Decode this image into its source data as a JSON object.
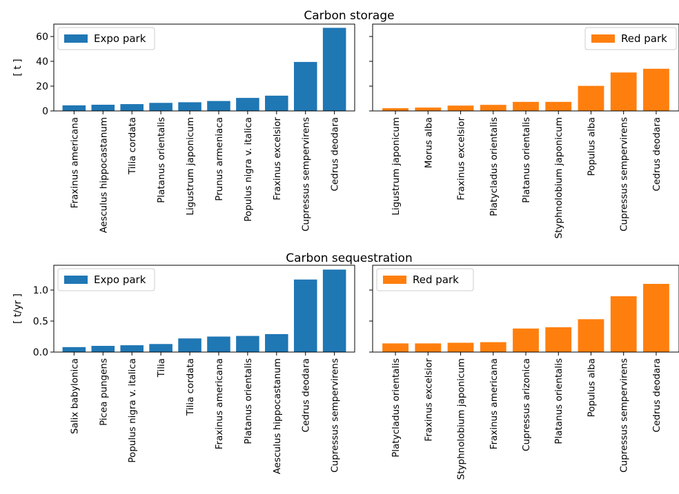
{
  "figure": {
    "title_top": "Carbon storage",
    "title_bottom": "Carbon sequestration"
  },
  "chart_data": [
    {
      "type": "bar",
      "panel": "storage-expo",
      "legend": "Expo park",
      "legend_placement": "top-left",
      "color": "#1f77b4",
      "ylabel": "[ t ]",
      "ylim": [
        0,
        70
      ],
      "yticks": [
        0,
        20,
        40,
        60
      ],
      "categories": [
        "Fraxinus americana",
        "Aesculus hippocastanum",
        "Tilia cordata",
        "Platanus orientalis",
        "Ligustrum japonicum",
        "Prunus armeniaca",
        "Populus nigra v. italica",
        "Fraxinus excelsior",
        "Cupressus sempervirens",
        "Cedrus deodara"
      ],
      "values": [
        4.5,
        5.0,
        5.5,
        6.5,
        7.0,
        8.0,
        10.5,
        12.3,
        39.5,
        67.0
      ]
    },
    {
      "type": "bar",
      "panel": "storage-red",
      "legend": "Red park",
      "legend_placement": "top-right",
      "color": "#ff7f0e",
      "ylabel": "",
      "ylim": [
        0,
        70
      ],
      "yticks": [
        0,
        20,
        40,
        60
      ],
      "categories": [
        "Ligustrum japonicum",
        "Morus alba",
        "Fraxinus excelsior",
        "Platycladus orientalis",
        "Platanus orientalis",
        "Styphnolobium japonicum",
        "Populus alba",
        "Cupressus sempervirens",
        "Cedrus deodara"
      ],
      "values": [
        2.2,
        2.7,
        4.3,
        4.9,
        7.3,
        7.3,
        20.2,
        31.0,
        34.0
      ]
    },
    {
      "type": "bar",
      "panel": "seq-expo",
      "legend": "Expo park",
      "legend_placement": "top-left",
      "color": "#1f77b4",
      "ylabel": "[ t/yr ]",
      "ylim": [
        0,
        1.4
      ],
      "yticks": [
        0.0,
        0.5,
        1.0
      ],
      "categories": [
        "Salix babylonica",
        "Picea pungens",
        "Populus nigra v. italica",
        "Tilia",
        "Tilia cordata",
        "Fraxinus americana",
        "Platanus orientalis",
        "Aesculus hippocastanum",
        "Cedrus deodara",
        "Cupressus sempervirens"
      ],
      "values": [
        0.08,
        0.1,
        0.11,
        0.13,
        0.22,
        0.25,
        0.26,
        0.29,
        1.17,
        1.33
      ]
    },
    {
      "type": "bar",
      "panel": "seq-red",
      "legend": "Red park",
      "legend_placement": "top-left",
      "color": "#ff7f0e",
      "ylabel": "",
      "ylim": [
        0,
        1.4
      ],
      "yticks": [
        0.0,
        0.5,
        1.0
      ],
      "categories": [
        "Platycladus orientalis",
        "Fraxinus excelsior",
        "Styphnolobium japonicum",
        "Fraxinus americana",
        "Cupressus arizonica",
        "Platanus orientalis",
        "Populus alba",
        "Cupressus sempervirens",
        "Cedrus deodara"
      ],
      "values": [
        0.14,
        0.14,
        0.15,
        0.16,
        0.38,
        0.4,
        0.53,
        0.9,
        1.1
      ]
    }
  ]
}
